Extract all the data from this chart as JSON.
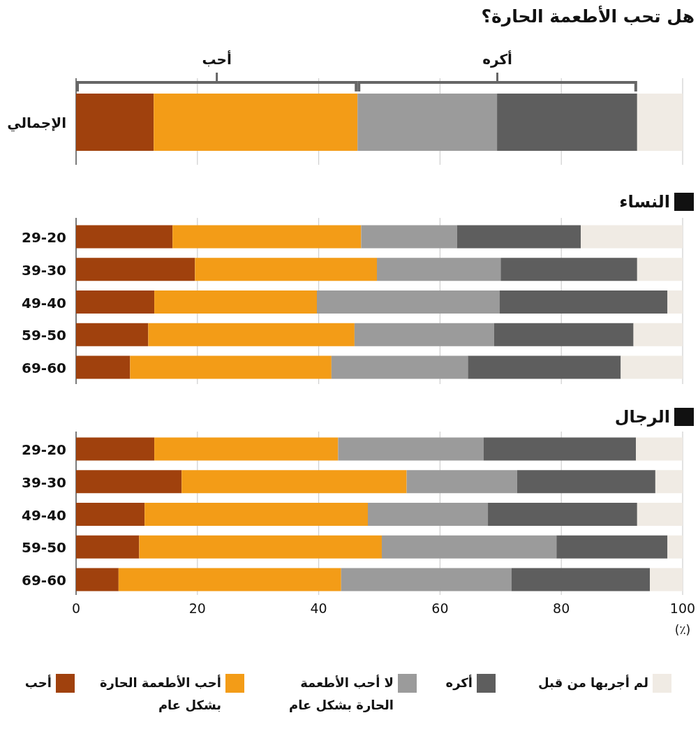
{
  "chart_data": [
    {
      "type": "bar",
      "orientation": "horizontal",
      "stacked": true,
      "title": "هل تحب الأطعمة الحارة؟",
      "categories": [
        "الإجمالي"
      ],
      "xlim": [
        0,
        100
      ],
      "xticks": [
        0,
        20,
        40,
        60,
        80,
        100
      ],
      "grid": "x",
      "tick_labels": "y",
      "annotations": [
        "أحب",
        "أكره"
      ],
      "series": [
        {
          "color": "#a0410d",
          "values": [
            12.8
          ]
        },
        {
          "color": "#f39c17",
          "values": [
            33.6
          ]
        },
        {
          "color": "#9b9b9b",
          "values": [
            23.0
          ]
        },
        {
          "color": "#5e5e5e",
          "values": [
            23.1
          ]
        },
        {
          "color": "#f0ebe4",
          "values": [
            7.5
          ]
        }
      ]
    },
    {
      "type": "bar",
      "orientation": "horizontal",
      "stacked": true,
      "title": "النساء",
      "categories": [
        "29-20",
        "39-30",
        "49-40",
        "59-50",
        "69-60"
      ],
      "xlim": [
        0,
        100
      ],
      "xticks": [
        0,
        20,
        40,
        60,
        80,
        100
      ],
      "grid": "x",
      "tick_labels": "y",
      "series": [
        {
          "color": "#a0410d",
          "values": [
            15.9,
            19.6,
            12.9,
            11.9,
            8.9
          ]
        },
        {
          "color": "#f39c17",
          "values": [
            31.1,
            30.0,
            26.8,
            34.0,
            33.2
          ]
        },
        {
          "color": "#9b9b9b",
          "values": [
            15.8,
            20.4,
            30.1,
            23.0,
            22.5
          ]
        },
        {
          "color": "#5e5e5e",
          "values": [
            20.4,
            22.5,
            27.7,
            23.0,
            25.2
          ]
        },
        {
          "color": "#f0ebe4",
          "values": [
            16.8,
            7.5,
            2.5,
            8.1,
            10.2
          ]
        }
      ]
    },
    {
      "type": "bar",
      "orientation": "horizontal",
      "stacked": true,
      "title": "الرجال",
      "categories": [
        "29-20",
        "39-30",
        "49-40",
        "59-50",
        "69-60"
      ],
      "xlim": [
        0,
        100
      ],
      "xticks": [
        0,
        20,
        40,
        60,
        80,
        100
      ],
      "xlabel": "(٪)",
      "grid": "x",
      "legend": "bottom",
      "series": [
        {
          "name": "أحب",
          "color": "#a0410d",
          "values": [
            12.9,
            17.4,
            11.3,
            10.4,
            7.0
          ]
        },
        {
          "name": "أحب الأطعمة الحارة بشكل عام",
          "color": "#f39c17",
          "values": [
            30.3,
            37.1,
            36.8,
            40.0,
            36.7
          ]
        },
        {
          "name": "لا أحب الأطعمة الحارة بشكل عام",
          "color": "#9b9b9b",
          "values": [
            24.0,
            18.2,
            19.8,
            28.8,
            28.1
          ]
        },
        {
          "name": "أكره",
          "color": "#5e5e5e",
          "values": [
            25.1,
            22.8,
            24.6,
            18.3,
            22.8
          ]
        },
        {
          "name": "لم أجربها من قبل",
          "color": "#f0ebe4",
          "values": [
            7.7,
            4.5,
            7.5,
            2.5,
            5.4
          ]
        }
      ]
    }
  ]
}
